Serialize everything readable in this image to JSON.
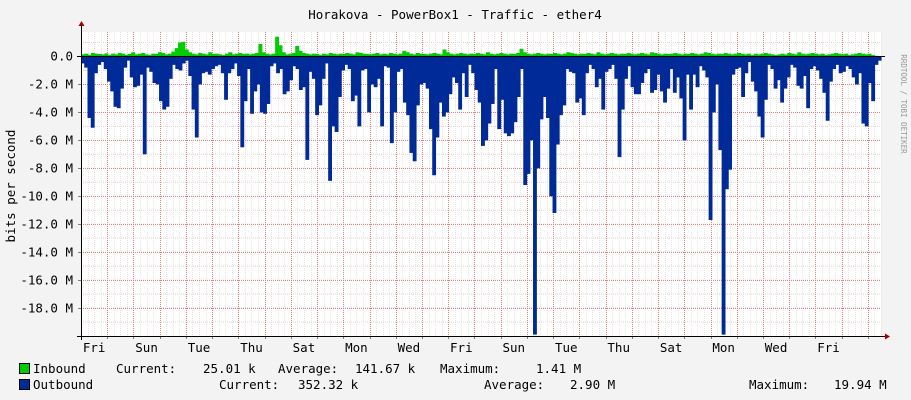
{
  "chart_data": {
    "type": "area",
    "title": "Horakova - PowerBox1 - Traffic - ether4",
    "ylabel": "bits per second",
    "watermark": "RRDTOOL / TOBI OETIKER",
    "ylim": [
      -20000000,
      1750000
    ],
    "yticks": [
      0,
      -2000000,
      -4000000,
      -6000000,
      -8000000,
      -10000000,
      -12000000,
      -14000000,
      -16000000,
      -18000000
    ],
    "ytick_labels": [
      "0.0",
      "-2.0 M",
      "-4.0 M",
      "-6.0 M",
      "-8.0 M",
      "-10.0 M",
      "-12.0 M",
      "-14.0 M",
      "-16.0 M",
      "-18.0 M"
    ],
    "xtick_labels": [
      "Fri",
      "Sun",
      "Tue",
      "Thu",
      "Sat",
      "Mon",
      "Wed",
      "Fri",
      "Sun",
      "Tue",
      "Thu",
      "Sat",
      "Mon",
      "Wed",
      "Fri"
    ],
    "x_days": 30.5,
    "xtick_positions_days": [
      0.5,
      2.5,
      4.5,
      6.5,
      8.5,
      10.5,
      12.5,
      14.5,
      16.5,
      18.5,
      20.5,
      22.5,
      24.5,
      26.5,
      28.5
    ],
    "grid": true,
    "series": [
      {
        "name": "Inbound",
        "color": "#00cc00",
        "values_mbps": [
          0.15,
          0.2,
          0.12,
          0.25,
          0.2,
          0.18,
          0.15,
          0.22,
          0.1,
          0.2,
          0.15,
          0.25,
          0.2,
          0.12,
          0.18,
          0.3,
          0.15,
          0.2,
          0.25,
          0.15,
          0.1,
          0.2,
          0.18,
          0.3,
          0.25,
          0.15,
          0.2,
          0.35,
          0.6,
          1.0,
          1.05,
          0.5,
          0.3,
          0.2,
          0.15,
          0.25,
          0.2,
          0.15,
          0.3,
          0.18,
          0.2,
          0.15,
          0.1,
          0.2,
          0.3,
          0.15,
          0.2,
          0.25,
          0.18,
          0.2,
          0.15,
          0.2,
          0.25,
          0.9,
          0.3,
          0.2,
          0.15,
          0.2,
          1.41,
          0.8,
          0.3,
          0.15,
          0.2,
          0.25,
          0.75,
          0.4,
          0.25,
          0.2,
          0.15,
          0.2,
          0.18,
          0.1,
          0.2,
          0.15,
          0.25,
          0.2,
          0.15,
          0.2,
          0.18,
          0.25,
          0.2,
          0.15,
          0.3,
          0.25,
          0.2,
          0.18,
          0.15,
          0.2,
          0.25,
          0.15,
          0.2,
          0.15,
          0.25,
          0.2,
          0.15,
          0.2,
          0.4,
          0.3,
          0.2,
          0.15,
          0.25,
          0.2,
          0.18,
          0.15,
          0.2,
          0.25,
          0.2,
          0.15,
          0.5,
          0.3,
          0.2,
          0.15,
          0.2,
          0.25,
          0.2,
          0.15,
          0.2,
          0.18,
          0.25,
          0.2,
          0.15,
          0.3,
          0.2,
          0.15,
          0.2,
          0.25,
          0.2,
          0.15,
          0.2,
          0.18,
          0.25,
          0.55,
          0.3,
          0.2,
          0.15,
          0.2,
          0.25,
          0.2,
          0.15,
          0.2,
          0.18,
          0.25,
          0.2,
          0.15,
          0.2,
          0.3,
          0.25,
          0.2,
          0.15,
          0.2,
          0.18,
          0.25,
          0.2,
          0.15,
          0.3,
          0.2,
          0.15,
          0.2,
          0.25,
          0.2,
          0.15,
          0.2,
          0.18,
          0.25,
          0.2,
          0.15,
          0.2,
          0.25,
          0.2,
          0.15,
          0.3,
          0.25,
          0.2,
          0.15,
          0.2,
          0.18,
          0.2,
          0.25,
          0.2,
          0.15,
          0.2,
          0.18,
          0.25,
          0.2,
          0.15,
          0.2,
          0.3,
          0.25,
          0.2,
          0.15,
          0.2,
          0.18,
          0.25,
          0.2,
          0.15,
          0.2,
          0.25,
          0.2,
          0.15,
          0.2,
          0.1,
          0.2,
          0.15,
          0.2,
          0.25,
          0.2,
          0.15,
          0.1,
          0.15,
          0.2,
          0.15,
          0.25,
          0.2,
          0.15,
          0.3,
          0.2,
          0.15,
          0.2,
          0.25,
          0.2,
          0.15,
          0.2,
          0.1,
          0.15,
          0.2,
          0.25,
          0.2,
          0.15,
          0.2,
          0.1,
          0.15,
          0.2,
          0.25,
          0.2,
          0.15,
          0.2,
          0.1,
          0.05,
          0.03
        ],
        "current": "25.01 k",
        "average": "141.67 k",
        "maximum": "1.41 M"
      },
      {
        "name": "Outbound",
        "color": "#002a97",
        "values_mbps": [
          -0.5,
          -0.8,
          -4.4,
          -5.1,
          -1.2,
          -0.6,
          -0.4,
          -0.9,
          -1.8,
          -2.5,
          -3.6,
          -3.7,
          -2.3,
          -0.8,
          -0.3,
          -1.5,
          -2.2,
          -2.1,
          -1.3,
          -7.0,
          -0.8,
          -1.1,
          -1.9,
          -2.0,
          -3.2,
          -3.8,
          -3.6,
          -1.6,
          -0.6,
          -0.9,
          -1.0,
          -0.5,
          -0.3,
          -1.4,
          -3.8,
          -5.8,
          -2.0,
          -1.2,
          -1.1,
          -1.3,
          -0.9,
          -0.7,
          -0.6,
          -1.2,
          -3.1,
          -1.2,
          -0.9,
          -0.5,
          -1.4,
          -6.5,
          -3.2,
          -0.9,
          -4.1,
          -2.5,
          -2.0,
          -4.0,
          -4.1,
          -3.4,
          -0.7,
          -0.5,
          -1.2,
          -0.9,
          -2.7,
          -2.5,
          -1.7,
          -0.7,
          -0.9,
          -2.4,
          -2.2,
          -7.4,
          -1.1,
          -1.6,
          -4.2,
          -3.5,
          -1.6,
          -0.5,
          -8.9,
          -5.0,
          -5.4,
          -2.9,
          -1.0,
          -0.6,
          -0.9,
          -3.2,
          -2.8,
          -5.0,
          -1.0,
          -0.9,
          -4.0,
          -2.0,
          -2.2,
          -1.6,
          -5.0,
          -0.7,
          -0.8,
          -6.2,
          -4.0,
          -1.1,
          -0.9,
          -3.3,
          -4.2,
          -6.9,
          -7.5,
          -3.5,
          -2.0,
          -1.9,
          -2.3,
          -5.2,
          -8.5,
          -5.8,
          -3.3,
          -4.3,
          -4.0,
          -2.7,
          -1.5,
          -1.9,
          -3.8,
          -1.2,
          -2.9,
          -0.6,
          -1.2,
          -2.4,
          -3.3,
          -6.4,
          -6.0,
          -4.8,
          -3.4,
          -0.9,
          -5.2,
          -3.1,
          -5.5,
          -5.7,
          -5.5,
          -4.7,
          -2.9,
          -0.9,
          -9.2,
          -8.4,
          -6.0,
          -19.9,
          -8.0,
          -4.5,
          -2.9,
          -4.4,
          -10.0,
          -11.2,
          -6.3,
          -4.2,
          -3.5,
          -0.9,
          -1.1,
          -1.2,
          -3.3,
          -3.0,
          -4.2,
          -1.2,
          -0.6,
          -0.9,
          -2.2,
          -1.6,
          -3.8,
          -1.1,
          -0.9,
          -0.6,
          -1.6,
          -7.2,
          -3.8,
          -1.6,
          -0.7,
          -2.2,
          -2.7,
          -2.7,
          -1.9,
          -1.2,
          -0.9,
          -2.6,
          -2.4,
          -1.3,
          -2.5,
          -3.3,
          -2.3,
          -0.9,
          -2.6,
          -1.5,
          -3.0,
          -6.0,
          -1.3,
          -3.8,
          -1.3,
          -2.2,
          -0.7,
          -1.0,
          -1.5,
          -11.7,
          -4.0,
          -2.0,
          -6.7,
          -19.9,
          -9.5,
          -8.1,
          -1.3,
          -0.9,
          -0.8,
          -2.9,
          -1.2,
          -0.4,
          -1.8,
          -2.5,
          -4.3,
          -5.8,
          -3.1,
          -0.6,
          -0.9,
          -2.3,
          -1.7,
          -3.3,
          -2.3,
          -1.5,
          -0.6,
          -0.8,
          -2.1,
          -2.3,
          -1.4,
          -3.7,
          -0.9,
          -0.7,
          -1.0,
          -1.6,
          -2.6,
          -4.6,
          -1.8,
          -0.9,
          -0.6,
          -1.2,
          -1.1,
          -0.7,
          -0.9,
          -1.5,
          -2.0,
          -1.2,
          -4.8,
          -5.0,
          -1.9,
          -3.2,
          -0.6,
          -0.3
        ],
        "current": "352.32 k",
        "average": "2.90 M",
        "maximum": "19.94 M"
      }
    ]
  },
  "legend": {
    "current_label": "Current:",
    "average_label": "Average:",
    "maximum_label": "Maximum:"
  }
}
